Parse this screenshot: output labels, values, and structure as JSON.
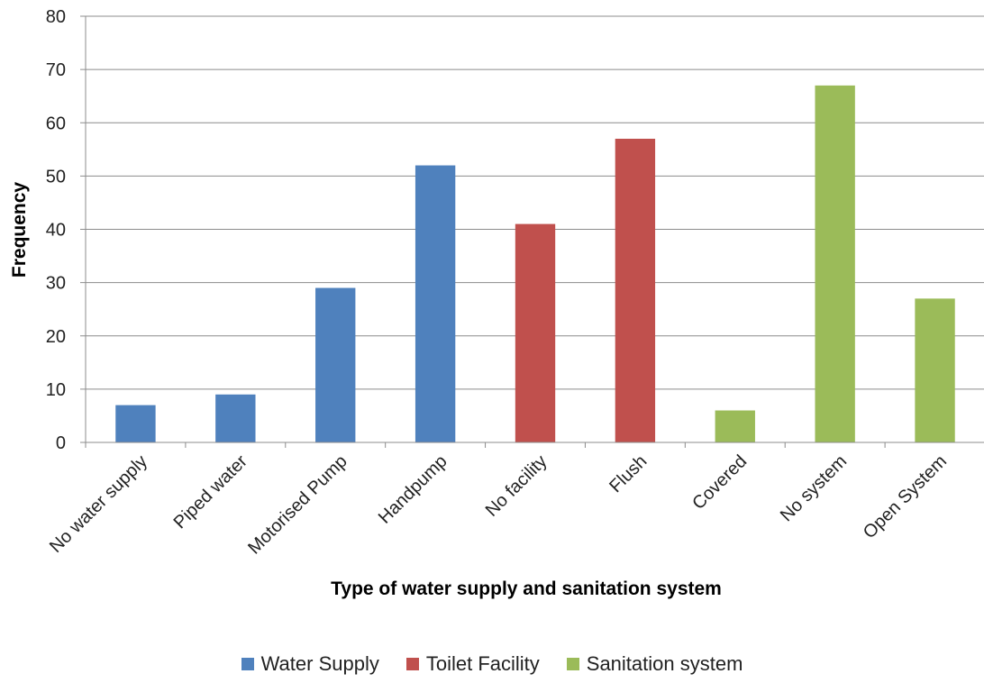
{
  "chart_data": {
    "type": "bar",
    "categories": [
      "No water supply",
      "Piped water",
      "Motorised Pump",
      "Handpump",
      "No facility",
      "Flush",
      "Covered",
      "No system",
      "Open System"
    ],
    "values": [
      7,
      9,
      29,
      52,
      41,
      57,
      6,
      67,
      27
    ],
    "category_series": [
      0,
      0,
      0,
      0,
      1,
      1,
      2,
      2,
      2
    ],
    "series": [
      {
        "name": "Water Supply",
        "color": "#4F81BD"
      },
      {
        "name": "Toilet Facility",
        "color": "#C0504D"
      },
      {
        "name": "Sanitation system",
        "color": "#9BBB59"
      }
    ],
    "title": "",
    "xlabel": "Type of water supply and sanitation system",
    "ylabel": "Frequency",
    "ylim": [
      0,
      80
    ],
    "yticks": [
      0,
      10,
      20,
      30,
      40,
      50,
      60,
      70,
      80
    ],
    "grid": true,
    "legend_position": "bottom"
  }
}
